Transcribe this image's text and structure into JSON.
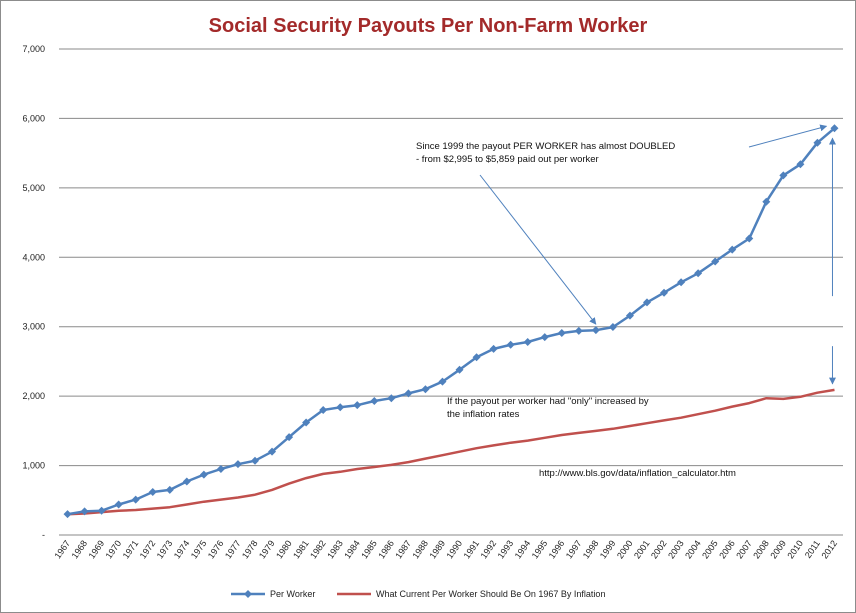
{
  "chart_data": {
    "type": "line",
    "title": "Social Security Payouts Per Non-Farm Worker",
    "x": [
      "1967",
      "1968",
      "1969",
      "1970",
      "1971",
      "1972",
      "1973",
      "1974",
      "1975",
      "1976",
      "1977",
      "1978",
      "1979",
      "1980",
      "1981",
      "1982",
      "1983",
      "1984",
      "1985",
      "1986",
      "1987",
      "1988",
      "1989",
      "1990",
      "1991",
      "1992",
      "1993",
      "1994",
      "1995",
      "1996",
      "1997",
      "1998",
      "1999",
      "2000",
      "2001",
      "2002",
      "2003",
      "2004",
      "2005",
      "2006",
      "2007",
      "2008",
      "2009",
      "2010",
      "2011",
      "2012"
    ],
    "y_ticks": [
      "-",
      "1,000",
      "2,000",
      "3,000",
      "4,000",
      "5,000",
      "6,000",
      "7,000"
    ],
    "ylim": [
      0,
      7000
    ],
    "grid": true,
    "legend_position": "bottom",
    "series": [
      {
        "name": "Per Worker",
        "color": "#4f81bd",
        "marker": "diamond",
        "values": [
          300,
          340,
          350,
          440,
          510,
          620,
          650,
          770,
          870,
          950,
          1020,
          1070,
          1200,
          1410,
          1620,
          1800,
          1840,
          1870,
          1930,
          1970,
          2040,
          2100,
          2210,
          2380,
          2560,
          2680,
          2740,
          2780,
          2850,
          2910,
          2940,
          2950,
          2995,
          3160,
          3350,
          3490,
          3640,
          3770,
          3940,
          4110,
          4270,
          4800,
          5180,
          5340,
          5650,
          5859
        ]
      },
      {
        "name": "What Current Per Worker Should Be On 1967 By Inflation",
        "color": "#c0504d",
        "marker": "none",
        "values": [
          300,
          310,
          330,
          350,
          360,
          380,
          400,
          440,
          480,
          510,
          540,
          580,
          650,
          740,
          820,
          880,
          910,
          950,
          980,
          1010,
          1050,
          1100,
          1150,
          1200,
          1250,
          1290,
          1330,
          1360,
          1400,
          1440,
          1470,
          1500,
          1530,
          1570,
          1610,
          1650,
          1690,
          1740,
          1790,
          1850,
          1900,
          1970,
          1960,
          1990,
          2050,
          2090
        ]
      }
    ],
    "annotations": [
      {
        "lines": [
          "Since 1999 the payout PER WORKER has almost DOUBLED",
          "- from $2,995 to  $5,859 paid out per worker"
        ]
      },
      {
        "lines": [
          "If the payout per worker had \"only\" increased by",
          "the inflation rates"
        ]
      },
      {
        "lines": [
          "http://www.bls.gov/data/inflation_calculator.htm"
        ]
      }
    ]
  }
}
